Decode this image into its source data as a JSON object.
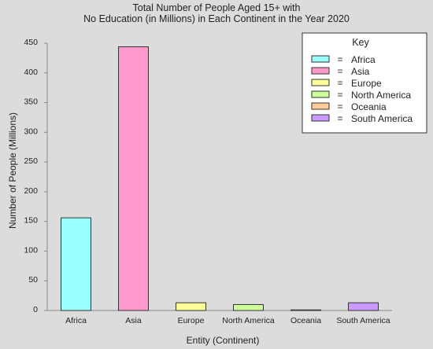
{
  "chart_data": {
    "type": "bar",
    "title_lines": [
      "Total Number of People Aged 15+ with",
      "No Education (in Millions) in Each Continent in the Year 2020"
    ],
    "xlabel": "Entity (Continent)",
    "ylabel": "Number of People (Millions)",
    "ylim": [
      0,
      450
    ],
    "yticks": [
      0,
      50,
      100,
      150,
      200,
      250,
      300,
      350,
      400,
      450
    ],
    "categories": [
      "Africa",
      "Asia",
      "Europe",
      "North America",
      "Oceania",
      "South America"
    ],
    "values": [
      156,
      444,
      13,
      10,
      1,
      13
    ],
    "colors": [
      "#99ffff",
      "#ff99cc",
      "#ffff99",
      "#ccff99",
      "#ffcc99",
      "#cc99ff"
    ],
    "legend": {
      "title": "Key",
      "placement": "top-right",
      "separator": "=",
      "entries": [
        "Africa",
        "Asia",
        "Europe",
        "North America",
        "Oceania",
        "South America"
      ]
    },
    "grid": false
  }
}
